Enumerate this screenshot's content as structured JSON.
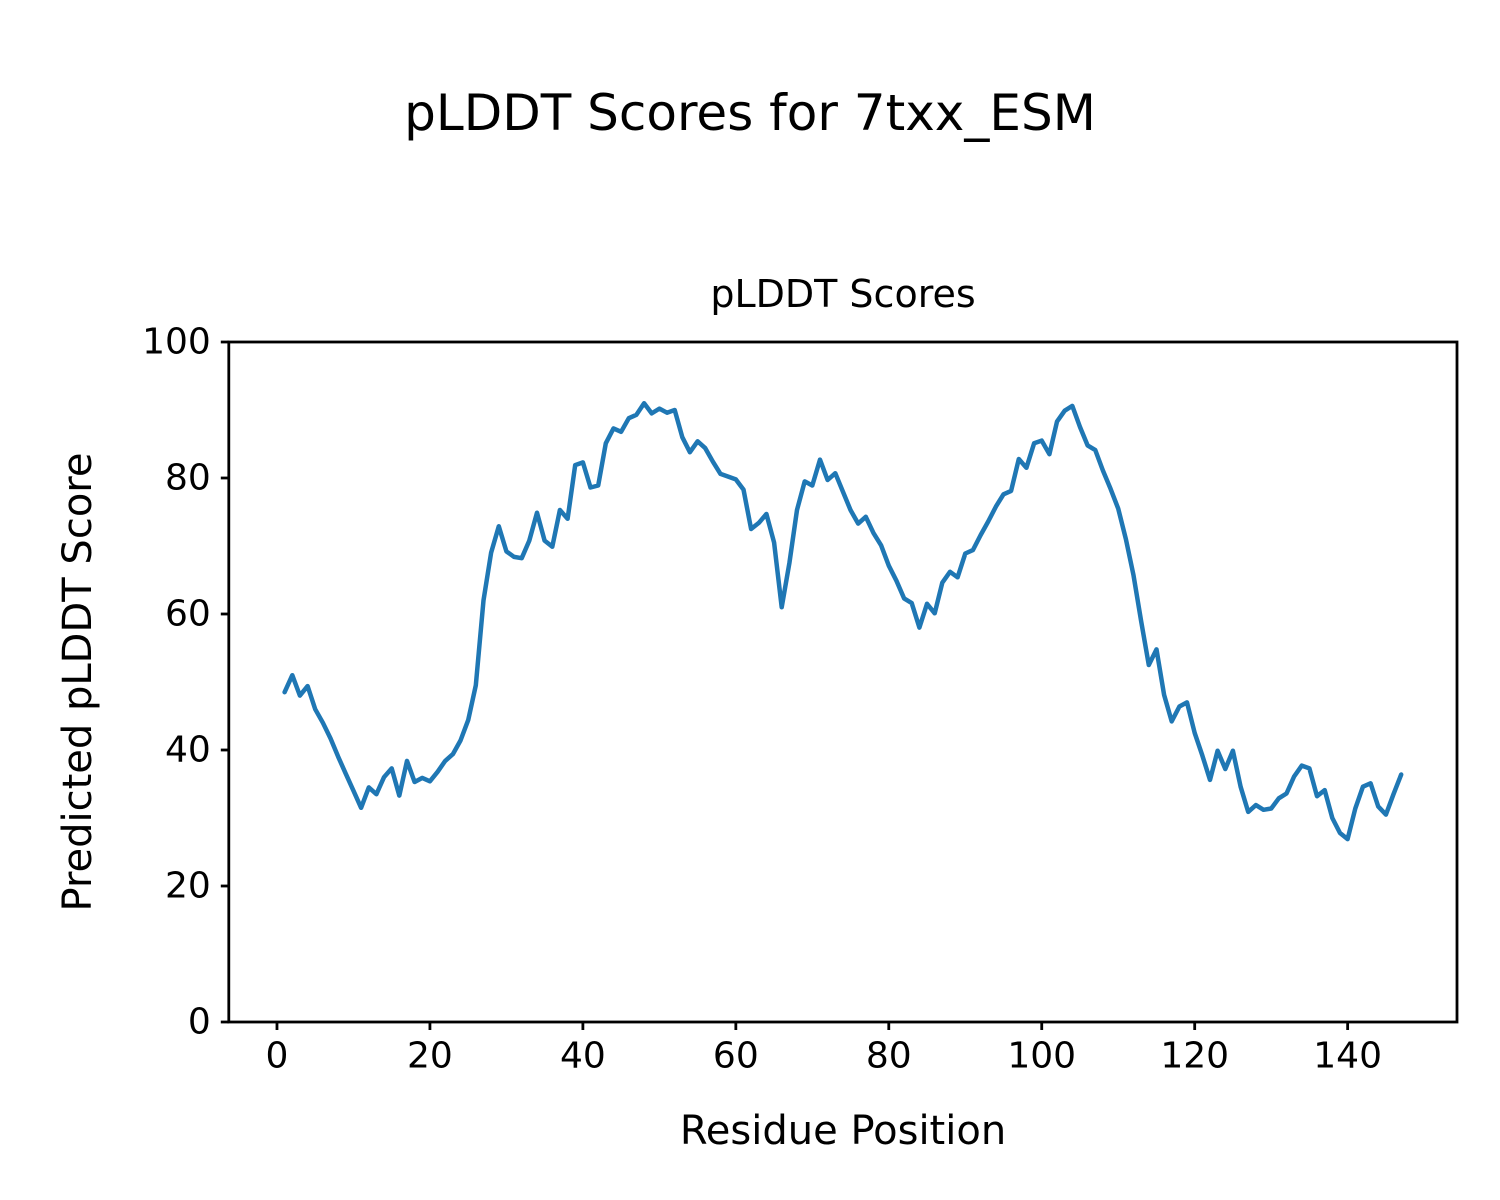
{
  "figure_title": "pLDDT Scores for 7txx_ESM",
  "chart_data": {
    "type": "line",
    "title": "pLDDT Scores",
    "xlabel": "Residue Position",
    "ylabel": "Predicted pLDDT Score",
    "legend": null,
    "grid": false,
    "line_color": "#1f77b4",
    "background_color": "#ffffff",
    "xlim": [
      -6.3,
      154.3
    ],
    "ylim": [
      0,
      100
    ],
    "xticks": [
      0,
      20,
      40,
      60,
      80,
      100,
      120,
      140
    ],
    "yticks": [
      0,
      20,
      40,
      60,
      80,
      100
    ],
    "x_start": 1,
    "x_step": 1,
    "series": [
      {
        "name": "pLDDT",
        "values": [
          48.5,
          51.0,
          48.0,
          49.4,
          46.0,
          44.0,
          41.7,
          39.0,
          36.5,
          34.0,
          31.5,
          34.5,
          33.5,
          36.0,
          37.3,
          33.3,
          38.4,
          35.3,
          35.9,
          35.4,
          36.8,
          38.4,
          39.4,
          41.4,
          44.4,
          49.5,
          62.0,
          69.0,
          72.9,
          69.2,
          68.4,
          68.2,
          70.8,
          74.9,
          70.8,
          69.9,
          75.3,
          74.0,
          81.9,
          82.3,
          78.6,
          78.9,
          85.1,
          87.3,
          86.8,
          88.8,
          89.3,
          91.0,
          89.5,
          90.2,
          89.6,
          90.0,
          86.0,
          83.8,
          85.4,
          84.4,
          82.4,
          80.6,
          80.2,
          79.8,
          78.3,
          72.5,
          73.4,
          74.7,
          70.5,
          61.0,
          67.5,
          75.3,
          79.5,
          78.9,
          82.7,
          79.7,
          80.7,
          78.0,
          75.3,
          73.3,
          74.3,
          71.9,
          70.1,
          67.1,
          64.9,
          62.3,
          61.6,
          58.0,
          61.5,
          60.1,
          64.6,
          66.2,
          65.4,
          68.9,
          69.4,
          71.6,
          73.6,
          75.8,
          77.6,
          78.1,
          82.8,
          81.5,
          85.1,
          85.5,
          83.5,
          88.3,
          89.9,
          90.6,
          87.5,
          84.8,
          84.1,
          81.1,
          78.4,
          75.5,
          71.0,
          65.7,
          58.9,
          52.5,
          54.8,
          48.1,
          44.2,
          46.4,
          47.0,
          42.5,
          39.2,
          35.6,
          39.9,
          37.2,
          39.9,
          34.6,
          30.9,
          31.9,
          31.2,
          31.4,
          32.9,
          33.6,
          36.1,
          37.7,
          37.3,
          33.2,
          34.1,
          30.0,
          27.8,
          26.9,
          31.4,
          34.6,
          35.1,
          31.7,
          30.5,
          33.5,
          36.4
        ]
      }
    ]
  }
}
